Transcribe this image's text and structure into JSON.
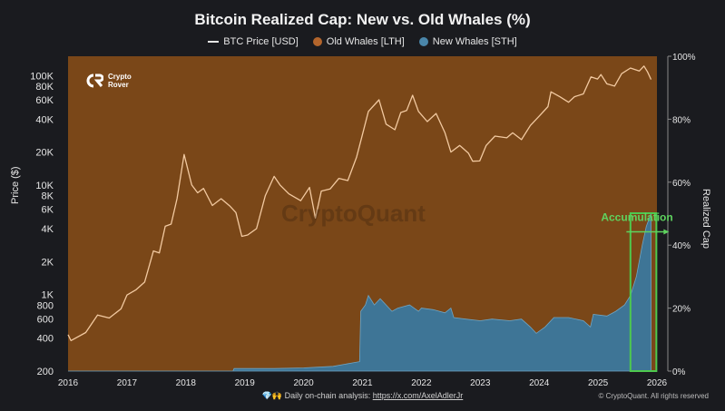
{
  "chart_data": {
    "type": "area",
    "title": "Bitcoin Realized Cap: New vs. Old Whales (%)",
    "ylabel": "Price ($)",
    "y2label": "Realized Cap",
    "yscale": "log",
    "ylim": [
      200,
      150000
    ],
    "y2lim": [
      0,
      100
    ],
    "x_ticks": [
      "2016",
      "2017",
      "2018",
      "2019",
      "2020",
      "2021",
      "2022",
      "2023",
      "2024",
      "2025",
      "2026"
    ],
    "y_ticks": [
      {
        "value": 200,
        "label": "200"
      },
      {
        "value": 400,
        "label": "400"
      },
      {
        "value": 600,
        "label": "600"
      },
      {
        "value": 800,
        "label": "800"
      },
      {
        "value": 1000,
        "label": "1K"
      },
      {
        "value": 2000,
        "label": "2K"
      },
      {
        "value": 4000,
        "label": "4K"
      },
      {
        "value": 6000,
        "label": "6K"
      },
      {
        "value": 8000,
        "label": "8K"
      },
      {
        "value": 10000,
        "label": "10K"
      },
      {
        "value": 20000,
        "label": "20K"
      },
      {
        "value": 40000,
        "label": "40K"
      },
      {
        "value": 60000,
        "label": "60K"
      },
      {
        "value": 80000,
        "label": "80K"
      },
      {
        "value": 100000,
        "label": "100K"
      }
    ],
    "y2_ticks": [
      {
        "value": 0,
        "label": "0%"
      },
      {
        "value": 20,
        "label": "20%"
      },
      {
        "value": 40,
        "label": "40%"
      },
      {
        "value": 60,
        "label": "60%"
      },
      {
        "value": 80,
        "label": "80%"
      },
      {
        "value": 100,
        "label": "100%"
      }
    ],
    "series": [
      {
        "name": "BTC Price [USD]",
        "color": "#f2c9a0",
        "points": [
          [
            2016.0,
            430
          ],
          [
            2016.05,
            380
          ],
          [
            2016.3,
            450
          ],
          [
            2016.5,
            650
          ],
          [
            2016.7,
            610
          ],
          [
            2016.9,
            740
          ],
          [
            2017.0,
            990
          ],
          [
            2017.15,
            1100
          ],
          [
            2017.3,
            1300
          ],
          [
            2017.45,
            2500
          ],
          [
            2017.55,
            2400
          ],
          [
            2017.65,
            4200
          ],
          [
            2017.75,
            4400
          ],
          [
            2017.85,
            7500
          ],
          [
            2017.97,
            19000
          ],
          [
            2018.1,
            10000
          ],
          [
            2018.2,
            8500
          ],
          [
            2018.3,
            9300
          ],
          [
            2018.45,
            6500
          ],
          [
            2018.6,
            7500
          ],
          [
            2018.75,
            6400
          ],
          [
            2018.85,
            5600
          ],
          [
            2018.95,
            3400
          ],
          [
            2019.05,
            3500
          ],
          [
            2019.2,
            4000
          ],
          [
            2019.35,
            8000
          ],
          [
            2019.5,
            12000
          ],
          [
            2019.6,
            10000
          ],
          [
            2019.75,
            8300
          ],
          [
            2019.95,
            7200
          ],
          [
            2020.1,
            9500
          ],
          [
            2020.2,
            5000
          ],
          [
            2020.3,
            8800
          ],
          [
            2020.45,
            9200
          ],
          [
            2020.6,
            11500
          ],
          [
            2020.75,
            11000
          ],
          [
            2020.9,
            18000
          ],
          [
            2021.0,
            29000
          ],
          [
            2021.1,
            47000
          ],
          [
            2021.28,
            60000
          ],
          [
            2021.4,
            36000
          ],
          [
            2021.55,
            32000
          ],
          [
            2021.65,
            46000
          ],
          [
            2021.75,
            48000
          ],
          [
            2021.85,
            66000
          ],
          [
            2021.95,
            47000
          ],
          [
            2022.1,
            38000
          ],
          [
            2022.25,
            45000
          ],
          [
            2022.4,
            30000
          ],
          [
            2022.5,
            20000
          ],
          [
            2022.65,
            23000
          ],
          [
            2022.8,
            19500
          ],
          [
            2022.87,
            16500
          ],
          [
            2022.99,
            16600
          ],
          [
            2023.1,
            23000
          ],
          [
            2023.25,
            28000
          ],
          [
            2023.45,
            27000
          ],
          [
            2023.55,
            30000
          ],
          [
            2023.7,
            26000
          ],
          [
            2023.85,
            35000
          ],
          [
            2023.99,
            42000
          ],
          [
            2024.15,
            52000
          ],
          [
            2024.2,
            71000
          ],
          [
            2024.35,
            64000
          ],
          [
            2024.5,
            57000
          ],
          [
            2024.6,
            64000
          ],
          [
            2024.75,
            68000
          ],
          [
            2024.88,
            97000
          ],
          [
            2024.99,
            93000
          ],
          [
            2025.05,
            102000
          ],
          [
            2025.15,
            84000
          ],
          [
            2025.28,
            80000
          ],
          [
            2025.4,
            104000
          ],
          [
            2025.55,
            117000
          ],
          [
            2025.7,
            110000
          ],
          [
            2025.78,
            122000
          ],
          [
            2025.84,
            108000
          ],
          [
            2025.9,
            92000
          ]
        ]
      },
      {
        "name": "Old Whales [LTH]",
        "color": "#7a4718",
        "fill": "remainder to 100%"
      },
      {
        "name": "New Whales [STH]",
        "color": "#3e7596",
        "points": [
          [
            2016.0,
            0
          ],
          [
            2018.8,
            0
          ],
          [
            2018.82,
            0.8
          ],
          [
            2019.5,
            0.8
          ],
          [
            2020.0,
            1.0
          ],
          [
            2020.5,
            1.5
          ],
          [
            2020.95,
            3
          ],
          [
            2020.97,
            19
          ],
          [
            2021.05,
            21
          ],
          [
            2021.1,
            24
          ],
          [
            2021.2,
            21
          ],
          [
            2021.3,
            23
          ],
          [
            2021.4,
            21
          ],
          [
            2021.5,
            19
          ],
          [
            2021.6,
            20
          ],
          [
            2021.8,
            21
          ],
          [
            2021.95,
            19
          ],
          [
            2022.0,
            20
          ],
          [
            2022.2,
            19.5
          ],
          [
            2022.4,
            18.5
          ],
          [
            2022.5,
            20
          ],
          [
            2022.55,
            17
          ],
          [
            2022.75,
            16.5
          ],
          [
            2023.0,
            16
          ],
          [
            2023.2,
            16.5
          ],
          [
            2023.5,
            16
          ],
          [
            2023.7,
            16.5
          ],
          [
            2023.85,
            14
          ],
          [
            2023.95,
            12
          ],
          [
            2024.1,
            14
          ],
          [
            2024.25,
            17
          ],
          [
            2024.5,
            17
          ],
          [
            2024.75,
            16
          ],
          [
            2024.87,
            14
          ],
          [
            2024.92,
            18
          ],
          [
            2025.15,
            17.5
          ],
          [
            2025.3,
            19
          ],
          [
            2025.45,
            21
          ],
          [
            2025.55,
            24
          ],
          [
            2025.65,
            30
          ],
          [
            2025.75,
            40
          ],
          [
            2025.82,
            46
          ],
          [
            2025.9,
            50
          ]
        ]
      }
    ],
    "annotations": [
      {
        "text": "Accumulation",
        "color": "#5fd35f",
        "x": 2025.05,
        "y": 4700
      },
      {
        "type": "highlight-box",
        "color": "#4ec94e",
        "x0": 2025.55,
        "x1": 2025.99
      }
    ],
    "grid": false,
    "legend_position": "top-center"
  },
  "logo": {
    "line1": "Crypto",
    "line2": "Rover"
  },
  "watermark": "CryptoQuant",
  "footer": {
    "icons": "💎🙌",
    "text": "Daily on-chain analysis:",
    "link": "https://x.com/AxelAdlerJr"
  },
  "copyright": "© CryptoQuant. All rights reserved"
}
